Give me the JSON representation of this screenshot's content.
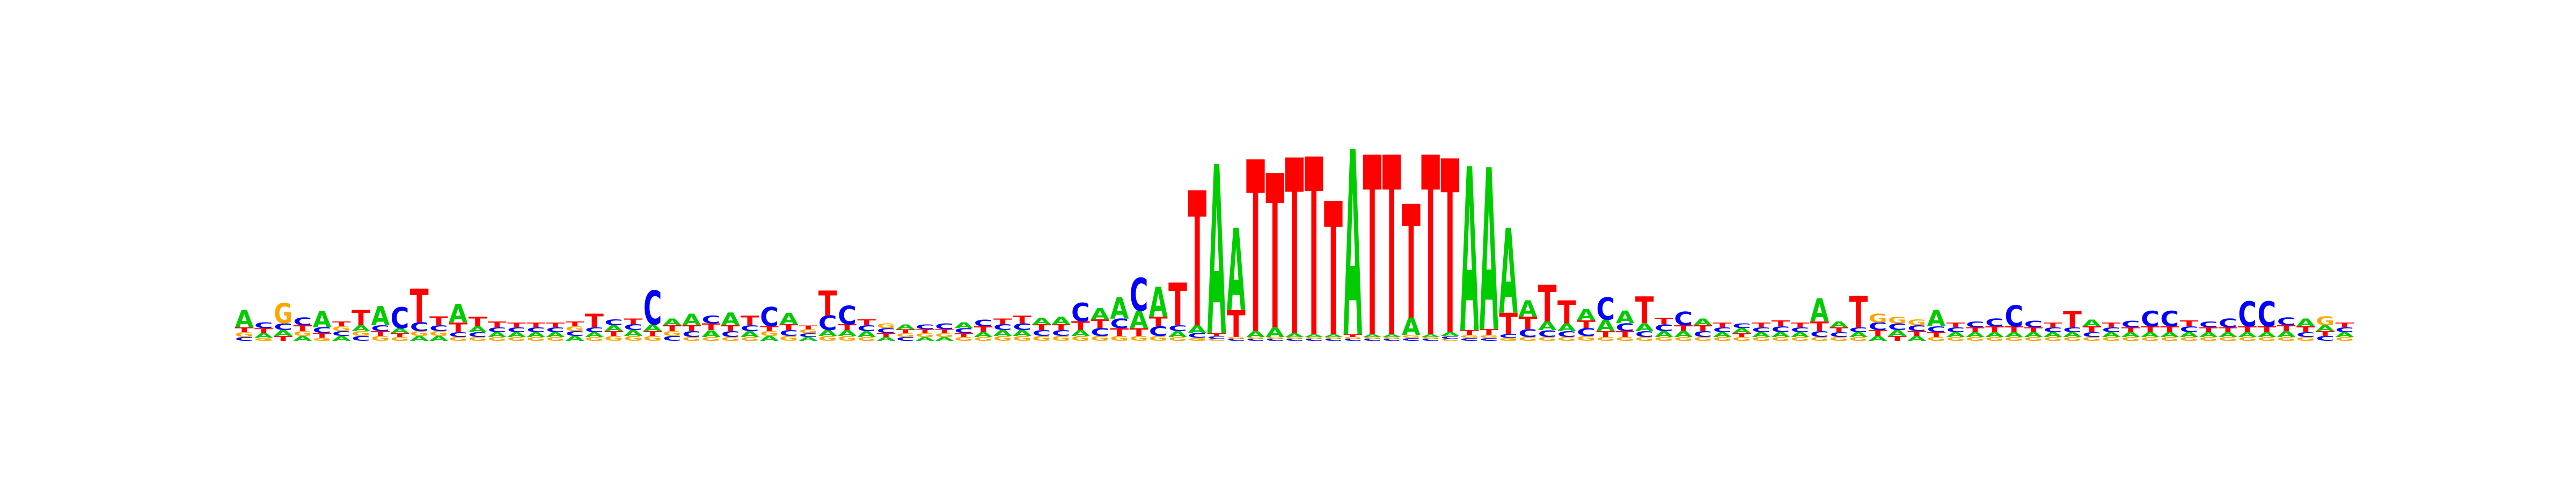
{
  "colors": {
    "A": "#00cc00",
    "C": "#0000ff",
    "G": "#ffa500",
    "T": "#ff0000"
  },
  "logo": {
    "type": "sequence-logo",
    "alphabet": [
      "A",
      "C",
      "G",
      "T"
    ],
    "max_bits": 2.0,
    "positions": [
      {
        "A": 0.18,
        "C": 0.04,
        "G": 0.05,
        "T": 0.05
      },
      {
        "A": 0.05,
        "C": 0.06,
        "G": 0.03,
        "T": 0.05
      },
      {
        "A": 0.06,
        "C": 0.07,
        "G": 0.21,
        "T": 0.05
      },
      {
        "A": 0.05,
        "C": 0.08,
        "G": 0.05,
        "T": 0.06
      },
      {
        "A": 0.17,
        "C": 0.06,
        "G": 0.03,
        "T": 0.05
      },
      {
        "A": 0.05,
        "C": 0.05,
        "G": 0.05,
        "T": 0.05
      },
      {
        "A": 0.06,
        "C": 0.05,
        "G": 0.05,
        "T": 0.16
      },
      {
        "A": 0.2,
        "C": 0.06,
        "G": 0.05,
        "T": 0.05
      },
      {
        "A": 0.05,
        "C": 0.22,
        "G": 0.04,
        "T": 0.04
      },
      {
        "A": 0.05,
        "C": 0.09,
        "G": 0.05,
        "T": 0.35
      },
      {
        "A": 0.05,
        "C": 0.06,
        "G": 0.05,
        "T": 0.09
      },
      {
        "A": 0.19,
        "C": 0.05,
        "G": 0.04,
        "T": 0.1
      },
      {
        "A": 0.06,
        "C": 0.05,
        "G": 0.04,
        "T": 0.1
      },
      {
        "A": 0.05,
        "C": 0.05,
        "G": 0.04,
        "T": 0.06
      },
      {
        "A": 0.05,
        "C": 0.05,
        "G": 0.04,
        "T": 0.05
      },
      {
        "A": 0.05,
        "C": 0.05,
        "G": 0.04,
        "T": 0.05
      },
      {
        "A": 0.05,
        "C": 0.05,
        "G": 0.04,
        "T": 0.05
      },
      {
        "A": 0.05,
        "C": 0.05,
        "G": 0.05,
        "T": 0.05
      },
      {
        "A": 0.05,
        "C": 0.05,
        "G": 0.04,
        "T": 0.14
      },
      {
        "A": 0.06,
        "C": 0.06,
        "G": 0.05,
        "T": 0.05
      },
      {
        "A": 0.06,
        "C": 0.06,
        "G": 0.05,
        "T": 0.06
      },
      {
        "A": 0.07,
        "C": 0.35,
        "G": 0.05,
        "T": 0.05
      },
      {
        "A": 0.07,
        "C": 0.05,
        "G": 0.05,
        "T": 0.06
      },
      {
        "A": 0.12,
        "C": 0.06,
        "G": 0.04,
        "T": 0.06
      },
      {
        "A": 0.07,
        "C": 0.08,
        "G": 0.04,
        "T": 0.07
      },
      {
        "A": 0.13,
        "C": 0.06,
        "G": 0.04,
        "T": 0.06
      },
      {
        "A": 0.06,
        "C": 0.06,
        "G": 0.04,
        "T": 0.1
      },
      {
        "A": 0.05,
        "C": 0.2,
        "G": 0.05,
        "T": 0.05
      },
      {
        "A": 0.12,
        "C": 0.06,
        "G": 0.05,
        "T": 0.06
      },
      {
        "A": 0.04,
        "C": 0.04,
        "G": 0.04,
        "T": 0.04
      },
      {
        "A": 0.06,
        "C": 0.15,
        "G": 0.05,
        "T": 0.26
      },
      {
        "A": 0.06,
        "C": 0.19,
        "G": 0.05,
        "T": 0.06
      },
      {
        "A": 0.06,
        "C": 0.06,
        "G": 0.04,
        "T": 0.06
      },
      {
        "A": 0.04,
        "C": 0.05,
        "G": 0.05,
        "T": 0.04
      },
      {
        "A": 0.05,
        "C": 0.04,
        "G": 0.04,
        "T": 0.04
      },
      {
        "A": 0.04,
        "C": 0.05,
        "G": 0.04,
        "T": 0.04
      },
      {
        "A": 0.04,
        "C": 0.06,
        "G": 0.04,
        "T": 0.04
      },
      {
        "A": 0.06,
        "C": 0.05,
        "G": 0.04,
        "T": 0.04
      },
      {
        "A": 0.05,
        "C": 0.07,
        "G": 0.04,
        "T": 0.06
      },
      {
        "A": 0.06,
        "C": 0.06,
        "G": 0.05,
        "T": 0.06
      },
      {
        "A": 0.06,
        "C": 0.07,
        "G": 0.05,
        "T": 0.08
      },
      {
        "A": 0.07,
        "C": 0.06,
        "G": 0.05,
        "T": 0.06
      },
      {
        "A": 0.08,
        "C": 0.06,
        "G": 0.05,
        "T": 0.06
      },
      {
        "A": 0.06,
        "C": 0.19,
        "G": 0.05,
        "T": 0.09
      },
      {
        "A": 0.12,
        "C": 0.08,
        "G": 0.05,
        "T": 0.09
      },
      {
        "A": 0.22,
        "C": 0.1,
        "G": 0.05,
        "T": 0.08
      },
      {
        "A": 0.18,
        "C": 0.34,
        "G": 0.05,
        "T": 0.08
      },
      {
        "A": 0.31,
        "C": 0.1,
        "G": 0.05,
        "T": 0.1
      },
      {
        "A": 0.06,
        "C": 0.06,
        "G": 0.04,
        "T": 0.44
      },
      {
        "A": 0.08,
        "C": 0.05,
        "G": 0.03,
        "T": 1.4
      },
      {
        "A": 1.75,
        "C": 0.03,
        "G": 0.02,
        "T": 0.03
      },
      {
        "A": 0.85,
        "C": 0.02,
        "G": 0.02,
        "T": 0.28
      },
      {
        "A": 0.06,
        "C": 0.02,
        "G": 0.02,
        "T": 1.78
      },
      {
        "A": 0.1,
        "C": 0.02,
        "G": 0.02,
        "T": 1.6
      },
      {
        "A": 0.04,
        "C": 0.02,
        "G": 0.02,
        "T": 1.82
      },
      {
        "A": 0.03,
        "C": 0.02,
        "G": 0.02,
        "T": 1.84
      },
      {
        "A": 0.03,
        "C": 0.02,
        "G": 0.02,
        "T": 1.38
      },
      {
        "A": 1.92,
        "C": 0.02,
        "G": 0.02,
        "T": 0.03
      },
      {
        "A": 0.03,
        "C": 0.02,
        "G": 0.02,
        "T": 1.86
      },
      {
        "A": 0.03,
        "C": 0.02,
        "G": 0.02,
        "T": 1.86
      },
      {
        "A": 0.18,
        "C": 0.03,
        "G": 0.03,
        "T": 1.18
      },
      {
        "A": 0.03,
        "C": 0.02,
        "G": 0.02,
        "T": 1.86
      },
      {
        "A": 0.04,
        "C": 0.03,
        "G": 0.02,
        "T": 1.8
      },
      {
        "A": 1.7,
        "C": 0.03,
        "G": 0.03,
        "T": 0.05
      },
      {
        "A": 1.68,
        "C": 0.03,
        "G": 0.03,
        "T": 0.06
      },
      {
        "A": 0.88,
        "C": 0.04,
        "G": 0.03,
        "T": 0.22
      },
      {
        "A": 0.17,
        "C": 0.08,
        "G": 0.04,
        "T": 0.13
      },
      {
        "A": 0.09,
        "C": 0.07,
        "G": 0.04,
        "T": 0.38
      },
      {
        "A": 0.08,
        "C": 0.06,
        "G": 0.04,
        "T": 0.24
      },
      {
        "A": 0.12,
        "C": 0.08,
        "G": 0.05,
        "T": 0.08
      },
      {
        "A": 0.12,
        "C": 0.23,
        "G": 0.04,
        "T": 0.06
      },
      {
        "A": 0.13,
        "C": 0.08,
        "G": 0.04,
        "T": 0.06
      },
      {
        "A": 0.08,
        "C": 0.06,
        "G": 0.04,
        "T": 0.28
      },
      {
        "A": 0.06,
        "C": 0.07,
        "G": 0.04,
        "T": 0.07
      },
      {
        "A": 0.06,
        "C": 0.14,
        "G": 0.04,
        "T": 0.06
      },
      {
        "A": 0.07,
        "C": 0.06,
        "G": 0.04,
        "T": 0.06
      },
      {
        "A": 0.05,
        "C": 0.05,
        "G": 0.04,
        "T": 0.05
      },
      {
        "A": 0.05,
        "C": 0.05,
        "G": 0.04,
        "T": 0.04
      },
      {
        "A": 0.05,
        "C": 0.05,
        "G": 0.04,
        "T": 0.05
      },
      {
        "A": 0.05,
        "C": 0.06,
        "G": 0.04,
        "T": 0.06
      },
      {
        "A": 0.05,
        "C": 0.05,
        "G": 0.04,
        "T": 0.05
      },
      {
        "A": 0.24,
        "C": 0.06,
        "G": 0.04,
        "T": 0.1
      },
      {
        "A": 0.06,
        "C": 0.05,
        "G": 0.04,
        "T": 0.05
      },
      {
        "A": 0.05,
        "C": 0.05,
        "G": 0.04,
        "T": 0.33
      },
      {
        "A": 0.05,
        "C": 0.08,
        "G": 0.09,
        "T": 0.06
      },
      {
        "A": 0.06,
        "C": 0.07,
        "G": 0.07,
        "T": 0.05
      },
      {
        "A": 0.05,
        "C": 0.06,
        "G": 0.06,
        "T": 0.05
      },
      {
        "A": 0.17,
        "C": 0.06,
        "G": 0.04,
        "T": 0.05
      },
      {
        "A": 0.05,
        "C": 0.05,
        "G": 0.04,
        "T": 0.05
      },
      {
        "A": 0.05,
        "C": 0.06,
        "G": 0.04,
        "T": 0.05
      },
      {
        "A": 0.05,
        "C": 0.08,
        "G": 0.04,
        "T": 0.06
      },
      {
        "A": 0.05,
        "C": 0.22,
        "G": 0.04,
        "T": 0.06
      },
      {
        "A": 0.05,
        "C": 0.07,
        "G": 0.04,
        "T": 0.05
      },
      {
        "A": 0.05,
        "C": 0.05,
        "G": 0.04,
        "T": 0.05
      },
      {
        "A": 0.05,
        "C": 0.05,
        "G": 0.04,
        "T": 0.17
      },
      {
        "A": 0.07,
        "C": 0.05,
        "G": 0.04,
        "T": 0.06
      },
      {
        "A": 0.05,
        "C": 0.05,
        "G": 0.04,
        "T": 0.05
      },
      {
        "A": 0.05,
        "C": 0.07,
        "G": 0.04,
        "T": 0.05
      },
      {
        "A": 0.05,
        "C": 0.16,
        "G": 0.04,
        "T": 0.06
      },
      {
        "A": 0.05,
        "C": 0.16,
        "G": 0.04,
        "T": 0.06
      },
      {
        "A": 0.05,
        "C": 0.06,
        "G": 0.04,
        "T": 0.06
      },
      {
        "A": 0.05,
        "C": 0.06,
        "G": 0.04,
        "T": 0.05
      },
      {
        "A": 0.05,
        "C": 0.09,
        "G": 0.04,
        "T": 0.05
      },
      {
        "A": 0.05,
        "C": 0.26,
        "G": 0.04,
        "T": 0.06
      },
      {
        "A": 0.05,
        "C": 0.26,
        "G": 0.04,
        "T": 0.06
      },
      {
        "A": 0.06,
        "C": 0.08,
        "G": 0.04,
        "T": 0.06
      },
      {
        "A": 0.08,
        "C": 0.05,
        "G": 0.04,
        "T": 0.06
      },
      {
        "A": 0.06,
        "C": 0.05,
        "G": 0.09,
        "T": 0.05
      },
      {
        "A": 0.05,
        "C": 0.05,
        "G": 0.04,
        "T": 0.05
      }
    ]
  }
}
